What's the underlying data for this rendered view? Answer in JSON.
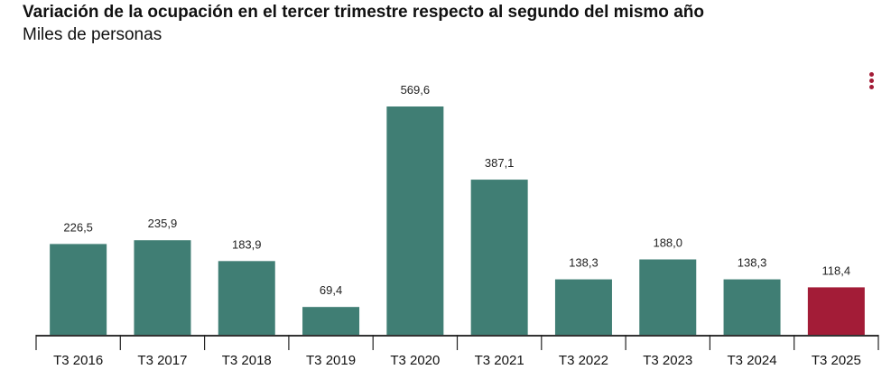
{
  "header": {
    "title": "Variación de la ocupación en el tercer trimestre respecto al segundo del mismo año",
    "subtitle": "Miles de personas"
  },
  "chart_data": {
    "type": "bar",
    "title": "Variación de la ocupación en el tercer trimestre respecto al segundo del mismo año",
    "subtitle": "Miles de personas",
    "categories": [
      "T3 2016",
      "T3 2017",
      "T3 2018",
      "T3 2019",
      "T3 2020",
      "T3 2021",
      "T3 2022",
      "T3 2023",
      "T3 2024",
      "T3 2025"
    ],
    "values": [
      226.5,
      235.9,
      183.9,
      69.4,
      569.6,
      387.1,
      138.3,
      188.0,
      138.3,
      118.4
    ],
    "labels": [
      "226,5",
      "235,9",
      "183,9",
      "69,4",
      "569,6",
      "387,1",
      "138,3",
      "188,0",
      "138,3",
      "118,4"
    ],
    "colors": [
      "#407e74",
      "#407e74",
      "#407e74",
      "#407e74",
      "#407e74",
      "#407e74",
      "#407e74",
      "#407e74",
      "#407e74",
      "#a31c37"
    ],
    "ylim": [
      0,
      600
    ],
    "grid": false
  },
  "accent": "#a31c37"
}
